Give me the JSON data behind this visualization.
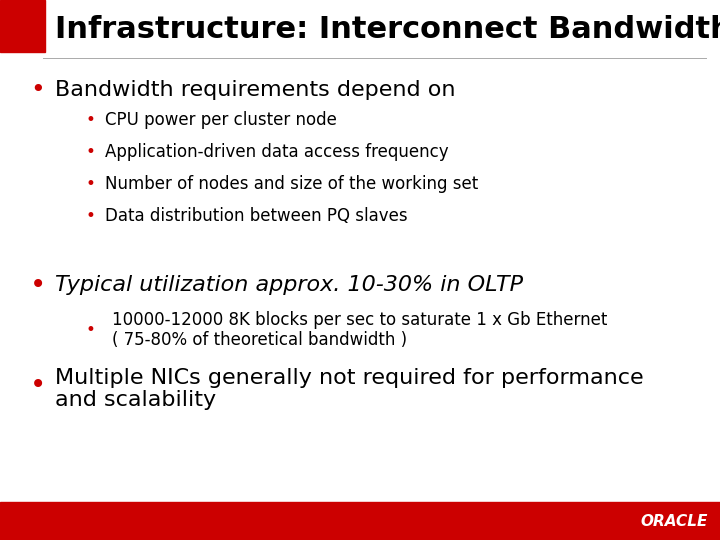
{
  "title": "Infrastructure: Interconnect Bandwidth",
  "title_fontsize": 22,
  "title_color": "#000000",
  "background_color": "#ffffff",
  "red_color": "#cc0000",
  "bullet1": "Bandwidth requirements depend on",
  "bullet1_fontsize": 16,
  "sub_bullets": [
    "CPU power per cluster node",
    "Application-driven data access frequency",
    "Number of nodes and size of the working set",
    "Data distribution between PQ slaves"
  ],
  "sub_bullet_fontsize": 12,
  "bullet2": "Typical utilization approx. 10-30% in OLTP",
  "bullet2_fontsize": 16,
  "sub_bullet2_line1": "10000-12000 8K blocks per sec to saturate 1 x Gb Ethernet",
  "sub_bullet2_line2": "( 75-80% of theoretical bandwidth )",
  "sub_bullet2_fontsize": 12,
  "bullet3_line1": "Multiple NICs generally not required for performance",
  "bullet3_line2": "and scalability",
  "bullet3_fontsize": 16,
  "oracle_text": "ORACLE",
  "oracle_fontsize": 11,
  "footer_red": "#cc0000",
  "red_square_color": "#cc0000",
  "font_family": "DejaVu Sans"
}
